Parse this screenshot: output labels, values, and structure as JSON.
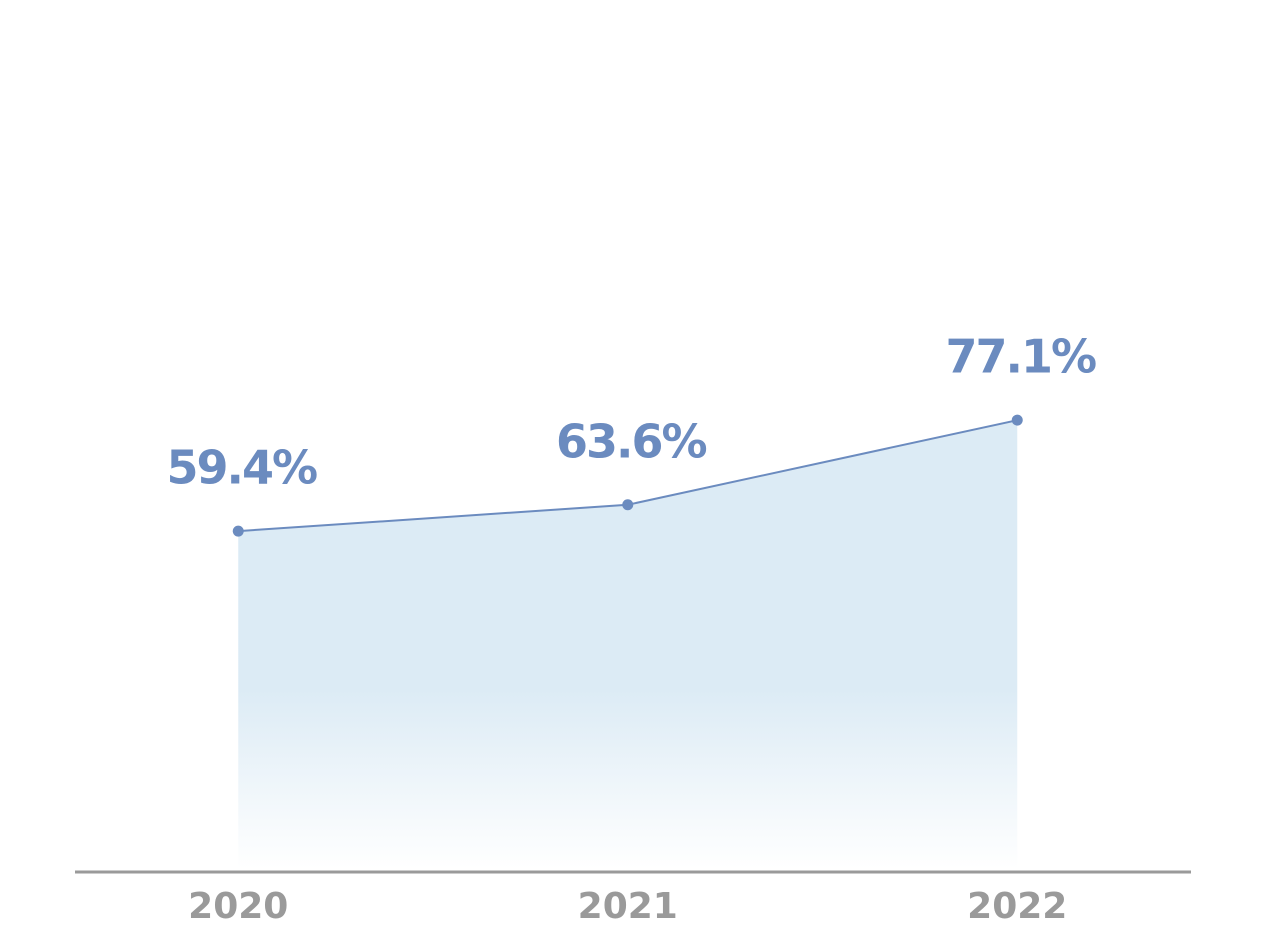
{
  "chart_data": {
    "type": "area",
    "categories": [
      "2020",
      "2021",
      "2022"
    ],
    "values": [
      59.4,
      63.6,
      77.1
    ],
    "value_labels": [
      "59.4%",
      "63.6%",
      "77.1%"
    ],
    "color": "#6b8bbf",
    "ylim": [
      5,
      125
    ]
  }
}
